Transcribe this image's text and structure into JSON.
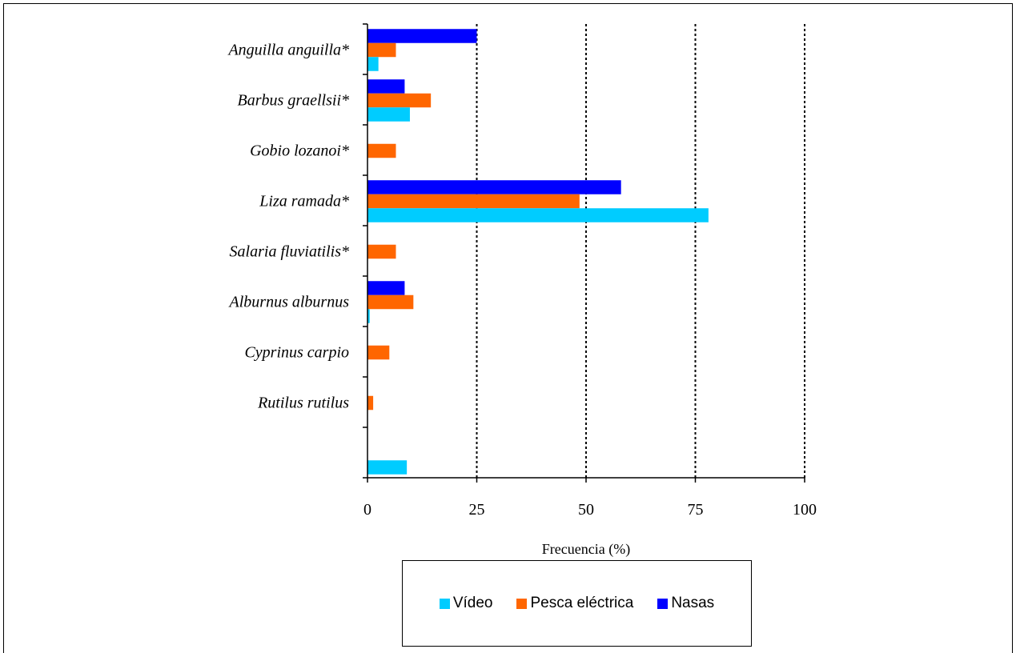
{
  "chart_data": {
    "type": "bar",
    "orientation": "horizontal",
    "categories": [
      "Anguilla anguilla*",
      "Barbus graellsii*",
      "Gobio lozanoi*",
      "Liza ramada*",
      "Salaria fluviatilis*",
      "Alburnus alburnus",
      "Cyprinus carpio",
      "Rutilus rutilus",
      ""
    ],
    "series": [
      {
        "name": "Nasas",
        "color": "#0000ff",
        "values": [
          25,
          8.5,
          0,
          58,
          0,
          8.5,
          0,
          0,
          0
        ]
      },
      {
        "name": "Pesca eléctrica",
        "color": "#ff6600",
        "values": [
          6.5,
          14.5,
          6.5,
          48.5,
          6.5,
          10.5,
          5,
          1.3,
          0
        ]
      },
      {
        "name": "Vídeo",
        "color": "#00ccff",
        "values": [
          2.5,
          9.7,
          0,
          78,
          0,
          0.5,
          0,
          0,
          9
        ]
      }
    ],
    "xlabel": "Frecuencia (%)",
    "xlim": [
      0,
      100
    ],
    "xticks": [
      "0",
      "25",
      "50",
      "75",
      "100"
    ],
    "grid": "vertical dotted at 25, 50, 75, 100",
    "legend_position": "bottom",
    "legend_order": [
      "Vídeo",
      "Pesca eléctrica",
      "Nasas"
    ]
  }
}
